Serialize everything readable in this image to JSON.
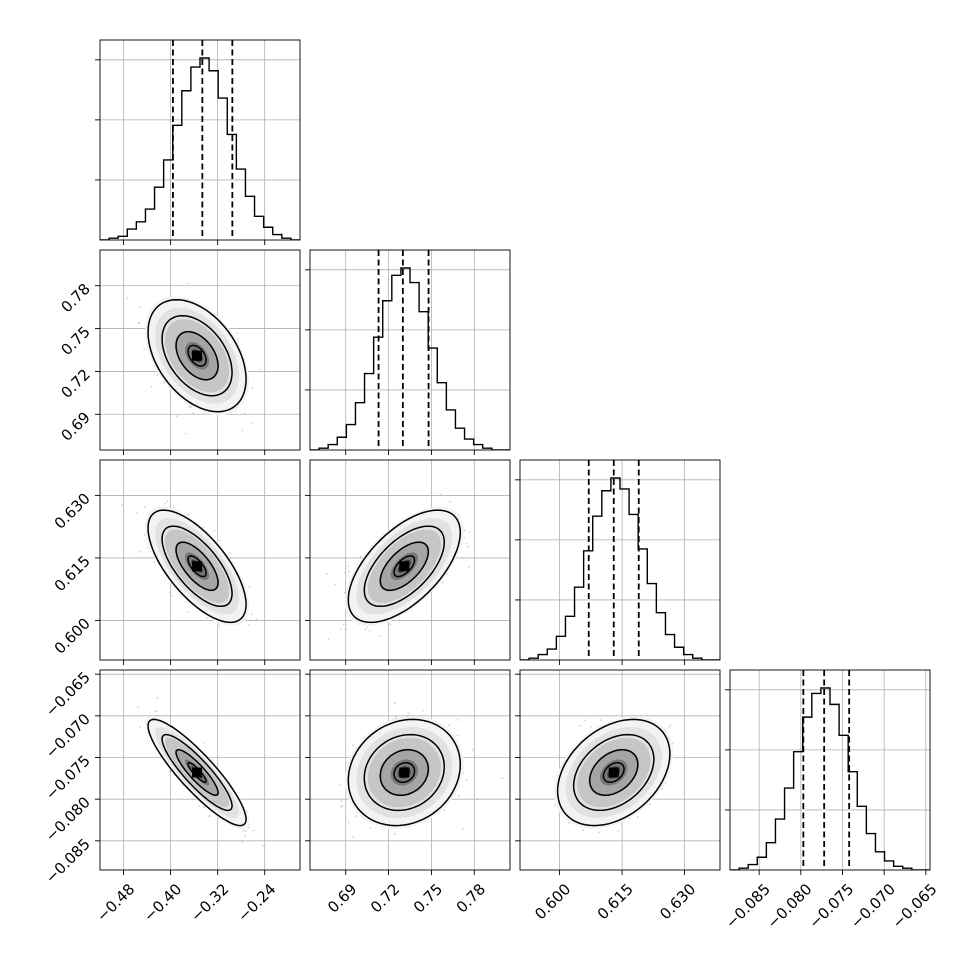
{
  "chart_data": {
    "type": "corner",
    "grid": true,
    "parameters": [
      {
        "range": [
          -0.52,
          -0.18
        ],
        "mean": -0.355,
        "sigma": 0.034,
        "quantiles": [
          -0.396,
          -0.346,
          -0.295
        ],
        "ticks": [
          -0.48,
          -0.4,
          -0.32,
          -0.24
        ],
        "tick_labels": [
          "−0.48",
          "−0.40",
          "−0.32",
          "−0.24"
        ],
        "histogram": [
          0.0,
          0.01,
          0.02,
          0.06,
          0.1,
          0.17,
          0.29,
          0.44,
          0.63,
          0.82,
          0.95,
          1.0,
          0.93,
          0.78,
          0.58,
          0.39,
          0.24,
          0.13,
          0.07,
          0.03,
          0.01,
          0.0
        ]
      },
      {
        "range": [
          0.665,
          0.805
        ],
        "mean": 0.731,
        "sigma": 0.016,
        "quantiles": [
          0.713,
          0.73,
          0.748
        ],
        "ticks": [
          0.69,
          0.72,
          0.75,
          0.78
        ],
        "tick_labels": [
          "0.69",
          "0.72",
          "0.75",
          "0.78"
        ],
        "histogram": [
          0.0,
          0.01,
          0.03,
          0.07,
          0.14,
          0.26,
          0.42,
          0.62,
          0.82,
          0.96,
          1.0,
          0.92,
          0.76,
          0.56,
          0.37,
          0.22,
          0.12,
          0.06,
          0.03,
          0.01,
          0.0,
          0.0
        ]
      },
      {
        "range": [
          0.5905,
          0.6385
        ],
        "mean": 0.613,
        "sigma": 0.0055,
        "quantiles": [
          0.607,
          0.613,
          0.619
        ],
        "ticks": [
          0.6,
          0.615,
          0.63
        ],
        "tick_labels": [
          "0.600",
          "0.615",
          "0.630"
        ],
        "histogram": [
          0.0,
          0.01,
          0.03,
          0.06,
          0.13,
          0.24,
          0.4,
          0.6,
          0.79,
          0.93,
          1.0,
          0.94,
          0.8,
          0.61,
          0.42,
          0.26,
          0.14,
          0.07,
          0.03,
          0.01,
          0.0,
          0.0
        ]
      },
      {
        "range": [
          -0.0885,
          -0.0645
        ],
        "mean": -0.0768,
        "sigma": 0.0026,
        "quantiles": [
          -0.0797,
          -0.0772,
          -0.0742
        ],
        "ticks": [
          -0.085,
          -0.08,
          -0.075,
          -0.07,
          -0.065
        ],
        "tick_labels": [
          "−0.085",
          "−0.080",
          "−0.075",
          "−0.070",
          "−0.065"
        ],
        "histogram": [
          0.0,
          0.01,
          0.03,
          0.07,
          0.15,
          0.28,
          0.45,
          0.65,
          0.84,
          0.97,
          1.0,
          0.91,
          0.74,
          0.54,
          0.35,
          0.2,
          0.1,
          0.05,
          0.02,
          0.01,
          0.0,
          0.0
        ]
      }
    ],
    "correlations": [
      {
        "i": 1,
        "j": 0,
        "rho": -0.42
      },
      {
        "i": 2,
        "j": 0,
        "rho": -0.68
      },
      {
        "i": 2,
        "j": 1,
        "rho": 0.6
      },
      {
        "i": 3,
        "j": 0,
        "rho": -0.88
      },
      {
        "i": 3,
        "j": 1,
        "rho": 0.15
      },
      {
        "i": 3,
        "j": 2,
        "rho": 0.35
      }
    ]
  }
}
